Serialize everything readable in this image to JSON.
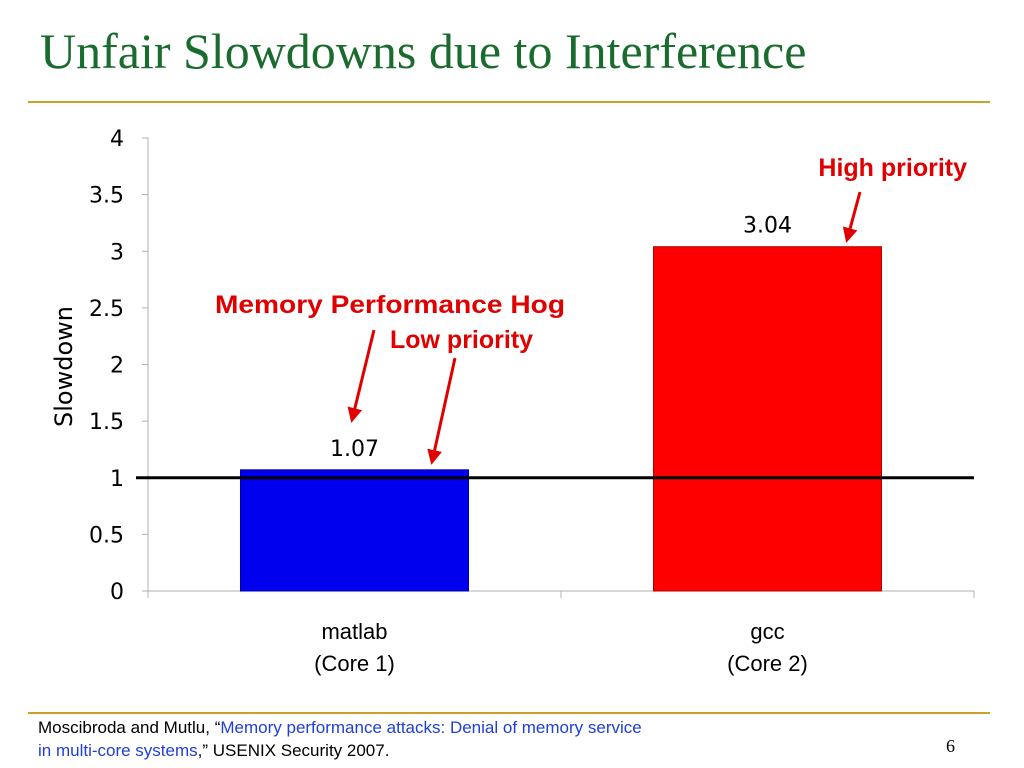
{
  "slide": {
    "title": "Unfair Slowdowns due to Interference",
    "page_number": "6"
  },
  "citation": {
    "authors": "Moscibroda and Mutlu, ",
    "open_quote": "“",
    "paper_title_line1": "Memory performance attacks: Denial of memory service",
    "paper_title_line2": "in multi-core systems",
    "close_quote": ",” ",
    "venue": "USENIX Security 2007."
  },
  "annotations": {
    "high_priority": "High priority",
    "memory_hog": "Memory Performance Hog",
    "low_priority": "Low priority"
  },
  "colors": {
    "title": "#1a6b2e",
    "rule": "#c9a227",
    "annotation": "#e00000",
    "citation_link": "#1f3fd6"
  },
  "chart_data": {
    "type": "bar",
    "categories": [
      "matlab\n(Core 1)",
      "gcc\n(Core 2)"
    ],
    "category_lines": [
      [
        "matlab",
        "(Core 1)"
      ],
      [
        "gcc",
        "(Core 2)"
      ]
    ],
    "values": [
      1.07,
      3.04
    ],
    "data_labels": [
      "1.07",
      "3.04"
    ],
    "bar_colors": [
      "#0000ee",
      "#ff0000"
    ],
    "ylabel": "Slowdown",
    "xlabel": "",
    "ylim": [
      0,
      4
    ],
    "yticks": [
      0,
      0.5,
      1,
      1.5,
      2,
      2.5,
      3,
      3.5,
      4
    ],
    "ytick_labels": [
      "0",
      "0.5",
      "1",
      "1.5",
      "2",
      "2.5",
      "3",
      "3.5",
      "4"
    ],
    "reference_line": 1,
    "grid": false,
    "legend": "none"
  }
}
